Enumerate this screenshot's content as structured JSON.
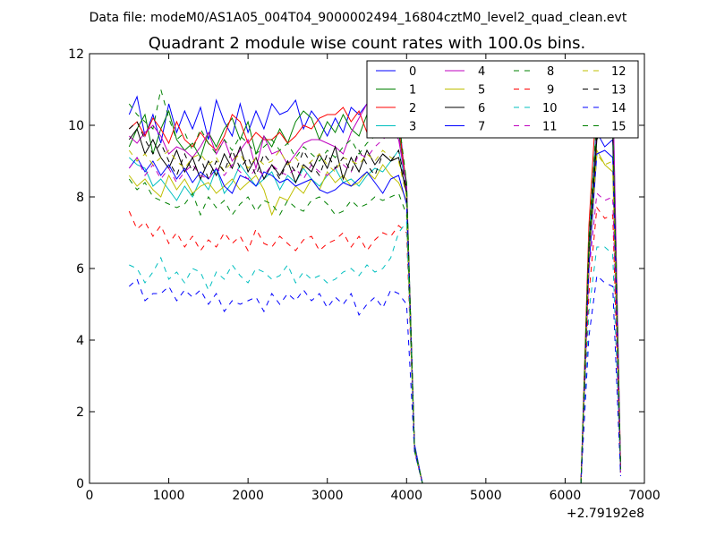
{
  "suptitle": "Data file: modeM0/AS1A05_004T04_9000002494_16804cztM0_level2_quad_clean.evt",
  "chart_data": {
    "type": "line",
    "title": "Quadrant 2 module wise count rates with 100.0s bins.",
    "xlabel": "",
    "ylabel": "",
    "x_offset_label": "+2.79192e8",
    "xlim": [
      0,
      7000
    ],
    "ylim": [
      0,
      12
    ],
    "xticks": [
      0,
      1000,
      2000,
      3000,
      4000,
      5000,
      6000,
      7000
    ],
    "yticks": [
      0,
      2,
      4,
      6,
      8,
      10,
      12
    ],
    "grid": false,
    "legend": {
      "location": "top-right",
      "columns": 4
    },
    "x": [
      500,
      600,
      700,
      800,
      900,
      1000,
      1100,
      1200,
      1300,
      1400,
      1500,
      1600,
      1700,
      1800,
      1900,
      2000,
      2100,
      2200,
      2300,
      2400,
      2500,
      2600,
      2700,
      2800,
      2900,
      3000,
      3100,
      3200,
      3300,
      3400,
      3500,
      3600,
      3700,
      3800,
      3900,
      4000,
      4100,
      4200,
      4300,
      4400,
      4500,
      4600,
      4700,
      4800,
      4900,
      5000,
      5100,
      5200,
      5300,
      5400,
      5500,
      5600,
      5700,
      5800,
      5900,
      6000,
      6100,
      6200,
      6300,
      6400,
      6500,
      6600,
      6700
    ],
    "series": [
      {
        "name": "0",
        "color": "#0000ff",
        "dash": "solid",
        "values": [
          10.3,
          10.8,
          9.7,
          10.3,
          9.5,
          10.6,
          9.8,
          10.4,
          9.9,
          10.5,
          9.6,
          10.7,
          10.1,
          9.7,
          10.6,
          9.8,
          10.4,
          9.9,
          10.6,
          10.3,
          10.4,
          10.7,
          9.9,
          10.4,
          10.1,
          9.7,
          10.2,
          9.8,
          10.5,
          10.3,
          10.6,
          9.9,
          10.4,
          10.8,
          10.3,
          8.1,
          1.1,
          0,
          0,
          0,
          0,
          0,
          0,
          0,
          0,
          0,
          0,
          0,
          0,
          0,
          0,
          0,
          0,
          0,
          0,
          0,
          0,
          0,
          6.1,
          9.8,
          9.4,
          9.6,
          0.3
        ]
      },
      {
        "name": "1",
        "color": "#008000",
        "dash": "solid",
        "values": [
          9.4,
          9.9,
          10.3,
          9.2,
          9.9,
          10.4,
          9.6,
          9.3,
          9.5,
          9.1,
          9.8,
          9.4,
          9.9,
          10.2,
          9.6,
          10.1,
          9.2,
          9.7,
          9.4,
          9.9,
          9.5,
          10.1,
          10.4,
          10.2,
          9.6,
          10.1,
          9.8,
          10.3,
          9.9,
          9.7,
          10.3,
          9.8,
          10.1,
          9.9,
          9.8,
          8.4,
          1.0,
          0,
          0,
          0,
          0,
          0,
          0,
          0,
          0,
          0,
          0,
          0,
          0,
          0,
          0,
          0,
          0,
          0,
          0,
          0,
          0,
          0,
          6.8,
          10.1,
          9.9,
          10.3,
          0.4
        ]
      },
      {
        "name": "2",
        "color": "#ff0000",
        "dash": "solid",
        "values": [
          9.9,
          10.1,
          9.7,
          10.2,
          9.9,
          9.5,
          10.1,
          9.6,
          9.4,
          9.8,
          9.5,
          9.3,
          9.7,
          10.3,
          10.1,
          9.5,
          9.8,
          9.6,
          9.6,
          9.8,
          9.5,
          9.7,
          10.0,
          9.9,
          10.2,
          10.3,
          10.3,
          10.5,
          10.1,
          10.4,
          9.8,
          10.2,
          9.9,
          10.3,
          10.1,
          8.2,
          1.0,
          0,
          0,
          0,
          0,
          0,
          0,
          0,
          0,
          0,
          0,
          0,
          0,
          0,
          0,
          0,
          0,
          0,
          0,
          0,
          0,
          0,
          7.2,
          10.9,
          9.9,
          10.8,
          0.5
        ]
      },
      {
        "name": "3",
        "color": "#00bfbf",
        "dash": "solid",
        "values": [
          9.1,
          8.9,
          8.8,
          8.3,
          8.5,
          8.2,
          7.9,
          8.3,
          8.0,
          8.5,
          8.2,
          8.8,
          8.1,
          8.4,
          8.9,
          8.6,
          8.3,
          8.5,
          8.7,
          8.2,
          8.6,
          8.4,
          8.8,
          8.5,
          8.3,
          8.6,
          8.8,
          8.4,
          8.5,
          8.3,
          8.6,
          8.8,
          8.7,
          9.0,
          9.3,
          8.3,
          1.0,
          0,
          0,
          0,
          0,
          0,
          0,
          0,
          0,
          0,
          0,
          0,
          0,
          0,
          0,
          0,
          0,
          0,
          0,
          0,
          0,
          0,
          6.7,
          10.3,
          9.8,
          11.2,
          0.4
        ]
      },
      {
        "name": "4",
        "color": "#bf00bf",
        "dash": "solid",
        "values": [
          9.7,
          9.5,
          9.8,
          10.0,
          9.7,
          9.2,
          9.4,
          9.3,
          9.1,
          9.4,
          9.8,
          9.2,
          9.6,
          9.0,
          9.3,
          9.6,
          8.8,
          9.7,
          9.2,
          9.3,
          8.9,
          9.2,
          9.5,
          9.6,
          9.6,
          9.5,
          9.4,
          9.2,
          9.8,
          10.2,
          10.6,
          10.4,
          10.2,
          9.9,
          9.6,
          8.3,
          1.0,
          0,
          0,
          0,
          0,
          0,
          0,
          0,
          0,
          0,
          0,
          0,
          0,
          0,
          0,
          0,
          0,
          0,
          0,
          0,
          0,
          0,
          6.4,
          9.9,
          11.0,
          11.2,
          0.4
        ]
      },
      {
        "name": "5",
        "color": "#bfbf00",
        "dash": "solid",
        "values": [
          8.6,
          8.3,
          8.5,
          8.2,
          8.0,
          8.6,
          8.2,
          8.5,
          8.1,
          8.3,
          8.4,
          8.1,
          8.3,
          8.5,
          8.2,
          8.4,
          8.6,
          8.2,
          7.5,
          8.0,
          7.9,
          8.3,
          8.1,
          8.5,
          8.2,
          8.7,
          8.4,
          8.6,
          8.3,
          8.4,
          8.7,
          8.5,
          8.9,
          8.6,
          8.4,
          7.9,
          1.0,
          0,
          0,
          0,
          0,
          0,
          0,
          0,
          0,
          0,
          0,
          0,
          0,
          0,
          0,
          0,
          0,
          0,
          0,
          0,
          0,
          0,
          6.2,
          9.3,
          8.9,
          8.7,
          0.3
        ]
      },
      {
        "name": "6",
        "color": "#000000",
        "dash": "solid",
        "values": [
          9.6,
          9.9,
          9.2,
          9.6,
          9.1,
          8.8,
          9.3,
          8.7,
          9.1,
          8.5,
          9.0,
          8.6,
          9.2,
          8.8,
          9.4,
          8.7,
          9.1,
          8.5,
          8.9,
          8.6,
          9.0,
          8.4,
          8.9,
          8.7,
          9.2,
          8.8,
          9.4,
          8.5,
          9.1,
          8.7,
          9.3,
          8.9,
          9.2,
          9.0,
          9.1,
          8.1,
          1.0,
          0,
          0,
          0,
          0,
          0,
          0,
          0,
          0,
          0,
          0,
          0,
          0,
          0,
          0,
          0,
          0,
          0,
          0,
          0,
          0,
          0,
          6.5,
          9.6,
          10.1,
          9.8,
          0.3
        ]
      },
      {
        "name": "7",
        "color": "#0000ff",
        "dash": "solid",
        "values": [
          8.8,
          9.1,
          8.7,
          9.0,
          8.6,
          8.9,
          8.5,
          8.8,
          8.4,
          8.7,
          8.5,
          8.8,
          8.3,
          8.1,
          8.6,
          8.5,
          8.3,
          8.7,
          8.6,
          8.4,
          8.5,
          8.3,
          8.4,
          8.5,
          8.2,
          8.1,
          8.2,
          8.4,
          8.3,
          8.5,
          8.7,
          8.4,
          8.1,
          8.5,
          8.6,
          7.8,
          1.0,
          0,
          0,
          0,
          0,
          0,
          0,
          0,
          0,
          0,
          0,
          0,
          0,
          0,
          0,
          0,
          0,
          0,
          0,
          0,
          0,
          0,
          6.0,
          9.2,
          9.3,
          9.1,
          0.3
        ]
      },
      {
        "name": "8",
        "color": "#008000",
        "dash": "dashed",
        "values": [
          8.5,
          8.2,
          8.4,
          8.0,
          7.9,
          7.8,
          7.7,
          7.8,
          8.1,
          7.5,
          8.0,
          7.7,
          7.9,
          7.5,
          7.8,
          8.0,
          7.6,
          7.9,
          7.8,
          7.5,
          7.9,
          7.7,
          7.6,
          7.9,
          8.0,
          7.8,
          7.5,
          7.6,
          7.9,
          7.7,
          7.8,
          8.0,
          7.9,
          8.0,
          8.1,
          7.5,
          0.9,
          0,
          0,
          0,
          0,
          0,
          0,
          0,
          0,
          0,
          0,
          0,
          0,
          0,
          0,
          0,
          0,
          0,
          0,
          0,
          0,
          0,
          6.4,
          9.9,
          10.4,
          10.0,
          0.4
        ]
      },
      {
        "name": "9",
        "color": "#ff0000",
        "dash": "dashed",
        "values": [
          7.6,
          7.1,
          7.3,
          6.9,
          7.2,
          6.7,
          7.0,
          6.6,
          6.9,
          6.5,
          6.8,
          6.6,
          7.0,
          6.7,
          6.9,
          6.5,
          7.1,
          6.7,
          6.6,
          6.9,
          6.7,
          6.5,
          6.8,
          6.9,
          6.5,
          6.7,
          6.8,
          7.0,
          6.6,
          6.9,
          6.5,
          6.8,
          7.0,
          6.9,
          7.2,
          7.0,
          0.9,
          0,
          0,
          0,
          0,
          0,
          0,
          0,
          0,
          0,
          0,
          0,
          0,
          0,
          0,
          0,
          0,
          0,
          0,
          0,
          0,
          0,
          5.3,
          7.7,
          7.4,
          7.5,
          0.3
        ]
      },
      {
        "name": "10",
        "color": "#00bfbf",
        "dash": "dashed",
        "values": [
          6.1,
          6.0,
          5.6,
          5.9,
          6.3,
          5.7,
          5.9,
          5.6,
          6.0,
          5.9,
          5.4,
          5.9,
          5.7,
          6.1,
          5.8,
          5.6,
          6.0,
          5.9,
          5.7,
          5.8,
          6.1,
          5.6,
          5.9,
          5.7,
          5.8,
          5.6,
          5.7,
          5.9,
          6.0,
          5.8,
          6.1,
          5.9,
          6.0,
          6.3,
          7.0,
          7.3,
          1.0,
          0,
          0,
          0,
          0,
          0,
          0,
          0,
          0,
          0,
          0,
          0,
          0,
          0,
          0,
          0,
          0,
          0,
          0,
          0,
          0,
          0,
          4.8,
          6.6,
          6.6,
          6.4,
          0.3
        ]
      },
      {
        "name": "11",
        "color": "#bf00bf",
        "dash": "dashed",
        "values": [
          8.8,
          9.1,
          8.6,
          8.9,
          8.5,
          8.8,
          8.4,
          8.7,
          8.9,
          8.6,
          8.5,
          8.8,
          8.6,
          8.9,
          8.7,
          8.5,
          8.8,
          8.6,
          8.9,
          8.7,
          8.6,
          8.8,
          8.5,
          8.9,
          8.7,
          8.6,
          8.8,
          8.9,
          8.7,
          9.2,
          9.1,
          9.4,
          9.6,
          9.8,
          9.7,
          8.2,
          1.0,
          0,
          0,
          0,
          0,
          0,
          0,
          0,
          0,
          0,
          0,
          0,
          0,
          0,
          0,
          0,
          0,
          0,
          0,
          0,
          0,
          0,
          5.9,
          8.1,
          7.9,
          8.0,
          0.3
        ]
      },
      {
        "name": "12",
        "color": "#bfbf00",
        "dash": "dashed",
        "values": [
          9.3,
          9.0,
          9.2,
          8.9,
          9.1,
          9.3,
          9.0,
          8.8,
          9.1,
          9.2,
          8.9,
          9.1,
          8.7,
          9.0,
          9.2,
          8.8,
          9.1,
          8.9,
          9.0,
          9.3,
          8.9,
          9.1,
          8.8,
          9.0,
          9.2,
          8.9,
          8.7,
          9.1,
          9.0,
          8.9,
          9.2,
          9.0,
          9.3,
          9.1,
          9.0,
          8.0,
          1.0,
          0,
          0,
          0,
          0,
          0,
          0,
          0,
          0,
          0,
          0,
          0,
          0,
          0,
          0,
          0,
          0,
          0,
          0,
          0,
          0,
          0,
          6.3,
          9.2,
          8.9,
          9.0,
          0.3
        ]
      },
      {
        "name": "13",
        "color": "#000000",
        "dash": "dashed",
        "values": [
          9.9,
          10.1,
          9.6,
          9.2,
          9.5,
          9.0,
          8.6,
          9.2,
          8.7,
          9.1,
          8.5,
          9.0,
          8.7,
          9.3,
          8.8,
          9.1,
          8.6,
          9.2,
          8.9,
          8.5,
          9.0,
          8.7,
          9.3,
          8.9,
          8.6,
          9.2,
          8.8,
          9.1,
          8.7,
          9.3,
          8.9,
          8.6,
          9.2,
          9.0,
          9.3,
          8.2,
          1.0,
          0,
          0,
          0,
          0,
          0,
          0,
          0,
          0,
          0,
          0,
          0,
          0,
          0,
          0,
          0,
          0,
          0,
          0,
          0,
          0,
          0,
          6.6,
          9.7,
          10.2,
          9.9,
          0.4
        ]
      },
      {
        "name": "14",
        "color": "#0000ff",
        "dash": "dashed",
        "values": [
          5.5,
          5.7,
          5.1,
          5.3,
          5.3,
          5.5,
          5.1,
          5.4,
          5.2,
          5.4,
          5.0,
          5.3,
          4.8,
          5.1,
          5.0,
          5.1,
          5.2,
          4.8,
          5.3,
          5.0,
          5.3,
          5.1,
          5.4,
          5.1,
          5.3,
          4.9,
          5.2,
          5.0,
          5.3,
          4.7,
          5.0,
          5.2,
          4.9,
          5.4,
          5.3,
          5.0,
          0.9,
          0,
          0,
          0,
          0,
          0,
          0,
          0,
          0,
          0,
          0,
          0,
          0,
          0,
          0,
          0,
          0,
          0,
          0,
          0,
          0,
          0,
          4.1,
          5.8,
          5.6,
          5.5,
          0.2
        ]
      },
      {
        "name": "15",
        "color": "#008000",
        "dash": "dashed",
        "values": [
          10.6,
          10.3,
          10.1,
          9.9,
          11.0,
          10.2,
          9.6,
          9.8,
          9.3,
          9.9,
          9.5,
          9.2,
          9.6,
          9.3,
          9.7,
          9.5,
          9.2,
          9.4,
          9.6,
          9.3,
          9.5,
          9.1,
          9.4,
          9.2,
          9.0,
          9.3,
          9.1,
          9.4,
          9.6,
          9.2,
          9.5,
          9.7,
          9.9,
          10.1,
          10.2,
          8.4,
          1.0,
          0,
          0,
          0,
          0,
          0,
          0,
          0,
          0,
          0,
          0,
          0,
          0,
          0,
          0,
          0,
          0,
          0,
          0,
          0,
          0,
          0,
          6.9,
          10.2,
          9.8,
          10.1,
          0.4
        ]
      }
    ]
  }
}
